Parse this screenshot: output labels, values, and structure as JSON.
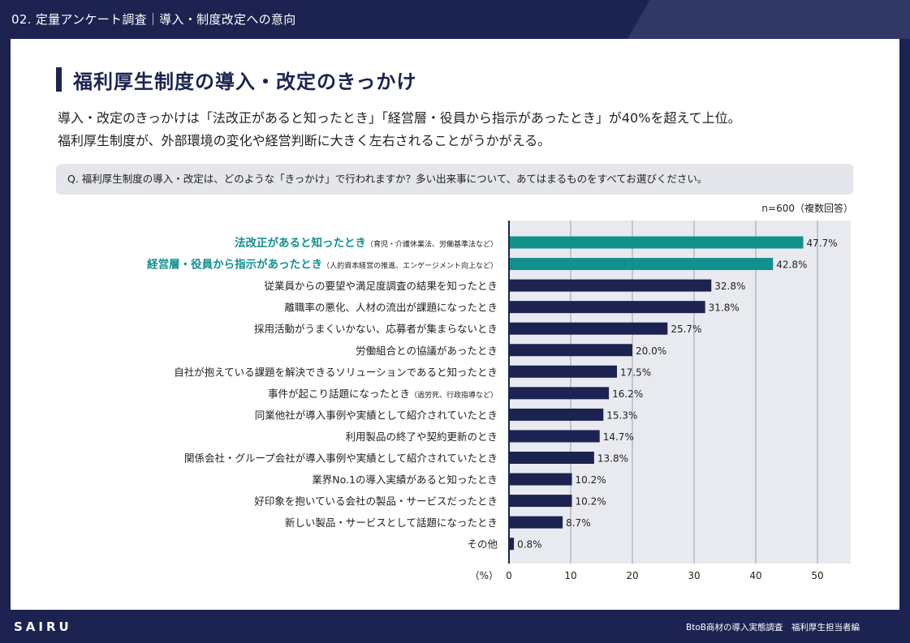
{
  "header": {
    "section_title": "02. 定量アンケート調査｜導入・制度改定への意向"
  },
  "main": {
    "heading": "福利厚生制度の導入・改定のきっかけ",
    "lead_line1": "導入・改定のきっかけは「法改正があると知ったとき」「経営層・役員から指示があったとき」が40%を超えて上位。",
    "lead_line2": "福利厚生制度が、外部環境の変化や経営判断に大きく左右されることがうかがえる。",
    "question": "Q. 福利厚生制度の導入・改定は、どのような「きっかけ」で行われますか？多い出来事について、あてはまるものをすべてお選びください。",
    "sample_note": "n=600（複数回答）"
  },
  "colors": {
    "highlight": "#12908e",
    "bar": "#1c2350",
    "plot_bg": "#e8eaf0",
    "grid": "#9aa0b0"
  },
  "chart_data": {
    "type": "bar",
    "orientation": "horizontal",
    "categories": [
      "法改正があると知ったとき",
      "経営層・役員から指示があったとき",
      "従業員からの要望や満足度調査の結果を知ったとき",
      "離職率の悪化、人材の流出が課題になったとき",
      "採用活動がうまくいかない、応募者が集まらないとき",
      "労働組合との協議があったとき",
      "自社が抱えている課題を解決できるソリューションであると知ったとき",
      "事件が起こり話題になったとき",
      "同業他社が導入事例や実績として紹介されていたとき",
      "利用製品の終了や契約更新のとき",
      "関係会社・グループ会社が導入事例や実績として紹介されていたとき",
      "業界No.1の導入実績があると知ったとき",
      "好印象を抱いている会社の製品・サービスだったとき",
      "新しい製品・サービスとして話題になったとき",
      "その他"
    ],
    "notes": [
      "（育児・介護休業法、労働基準法など）",
      "（人的資本経営の推進、エンゲージメント向上など）",
      "",
      "",
      "",
      "",
      "",
      "（過労死、行政指導など）",
      "",
      "",
      "",
      "",
      "",
      "",
      ""
    ],
    "highlighted": [
      true,
      true,
      false,
      false,
      false,
      false,
      false,
      false,
      false,
      false,
      false,
      false,
      false,
      false,
      false
    ],
    "values": [
      47.7,
      42.8,
      32.8,
      31.8,
      25.7,
      20.0,
      17.5,
      16.2,
      15.3,
      14.7,
      13.8,
      10.2,
      10.2,
      8.7,
      0.8
    ],
    "value_labels": [
      "47.7%",
      "42.8%",
      "32.8%",
      "31.8%",
      "25.7%",
      "20.0%",
      "17.5%",
      "16.2%",
      "15.3%",
      "14.7%",
      "13.8%",
      "10.2%",
      "10.2%",
      "8.7%",
      "0.8%"
    ],
    "x_unit_label": "（%）",
    "xticks": [
      0,
      10,
      20,
      30,
      40,
      50
    ],
    "xlim": [
      0,
      55
    ],
    "grid": true
  },
  "footer": {
    "logo": "SAIRU",
    "source": "BtoB商材の導入実態調査　福利厚生担当者編"
  }
}
